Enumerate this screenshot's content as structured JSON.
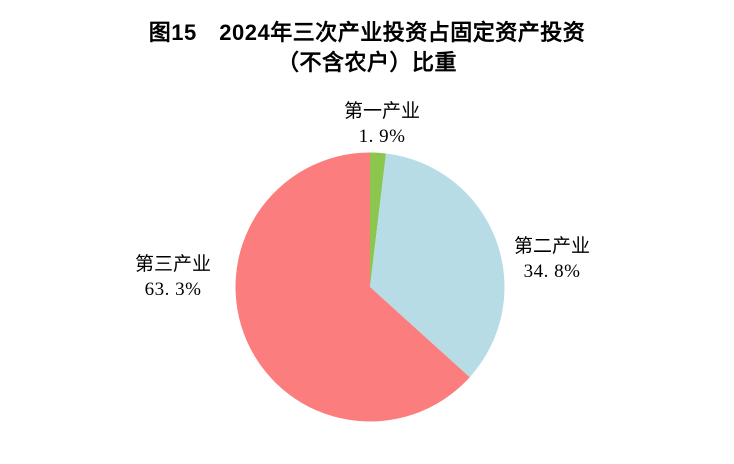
{
  "title": {
    "line1": "图15　2024年三次产业投资占固定资产投资",
    "line2": "（不含农户）比重"
  },
  "chart_data": {
    "type": "pie",
    "title": "图15 2024年三次产业投资占固定资产投资（不含农户）比重",
    "unit": "%",
    "start_angle_deg": 0,
    "direction": "clockwise",
    "legend_position": "none",
    "labels_position": "outside",
    "background_color": "#ffffff",
    "slices": [
      {
        "label": "第一产业",
        "value": 1.9,
        "pct_label": "1. 9%",
        "color": "#8DC64F"
      },
      {
        "label": "第二产业",
        "value": 34.8,
        "pct_label": "34. 8%",
        "color": "#B7DCE6"
      },
      {
        "label": "第三产业",
        "value": 63.3,
        "pct_label": "63. 3%",
        "color": "#FB7D7D"
      }
    ]
  }
}
